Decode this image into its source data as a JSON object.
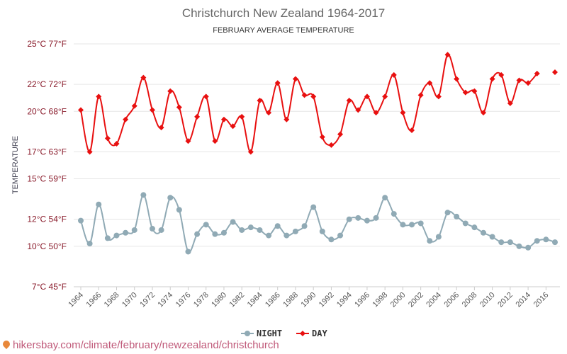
{
  "chart_data": {
    "type": "line",
    "title": "Christchurch New Zealand 1964-2017",
    "subtitle": "FEBRUARY AVERAGE TEMPERATURE",
    "ylabel": "TEMPERATURE",
    "ylim": [
      7,
      25
    ],
    "yticks": [
      {
        "value": 7,
        "label": "7°C 45°F"
      },
      {
        "value": 10,
        "label": "10°C 50°F"
      },
      {
        "value": 12,
        "label": "12°C 54°F"
      },
      {
        "value": 15,
        "label": "15°C 59°F"
      },
      {
        "value": 17,
        "label": "17°C 63°F"
      },
      {
        "value": 20,
        "label": "20°C 68°F"
      },
      {
        "value": 22,
        "label": "22°C 72°F"
      },
      {
        "value": 25,
        "label": "25°C 77°F"
      }
    ],
    "xticks": [
      "1964",
      "1966",
      "1968",
      "1970",
      "1972",
      "1974",
      "1976",
      "1978",
      "1980",
      "1982",
      "1984",
      "1986",
      "1988",
      "1990",
      "1992",
      "1994",
      "1996",
      "1998",
      "2000",
      "2002",
      "2004",
      "2006",
      "2008",
      "2010",
      "2012",
      "2014",
      "2016"
    ],
    "x": [
      1964,
      1965,
      1966,
      1967,
      1968,
      1969,
      1970,
      1971,
      1972,
      1973,
      1974,
      1975,
      1976,
      1977,
      1978,
      1979,
      1980,
      1981,
      1982,
      1983,
      1984,
      1985,
      1986,
      1987,
      1988,
      1989,
      1990,
      1991,
      1992,
      1993,
      1994,
      1995,
      1996,
      1997,
      1998,
      1999,
      2000,
      2001,
      2002,
      2003,
      2004,
      2005,
      2006,
      2007,
      2008,
      2009,
      2010,
      2011,
      2012,
      2013,
      2014,
      2015,
      2016,
      2017
    ],
    "series": [
      {
        "name": "NIGHT",
        "color": "#90aab5",
        "values": [
          11.9,
          10.2,
          13.1,
          10.6,
          10.8,
          11.0,
          11.2,
          13.8,
          11.3,
          11.2,
          13.6,
          12.7,
          9.6,
          10.9,
          11.6,
          10.9,
          11.0,
          11.8,
          11.2,
          11.4,
          11.2,
          10.8,
          11.5,
          10.8,
          11.1,
          11.5,
          12.9,
          11.1,
          10.5,
          10.8,
          12.0,
          12.1,
          11.9,
          12.1,
          13.6,
          12.4,
          11.6,
          11.6,
          11.7,
          10.4,
          10.7,
          12.5,
          12.2,
          11.7,
          11.4,
          11.0,
          10.7,
          10.3,
          10.3,
          10.0,
          9.9,
          10.4,
          10.5,
          10.3
        ]
      },
      {
        "name": "DAY",
        "color": "#e81010",
        "values": [
          20.1,
          17.0,
          21.1,
          18.0,
          17.6,
          19.4,
          20.4,
          22.5,
          20.1,
          18.8,
          21.5,
          20.3,
          17.8,
          19.6,
          21.1,
          17.8,
          19.4,
          18.9,
          19.6,
          17.0,
          20.8,
          19.9,
          22.1,
          19.4,
          22.4,
          21.2,
          21.1,
          18.1,
          17.5,
          18.3,
          20.8,
          20.1,
          21.1,
          19.9,
          21.1,
          22.7,
          19.9,
          18.6,
          21.2,
          22.1,
          21.1,
          24.2,
          22.4,
          21.4,
          21.5,
          19.9,
          22.4,
          22.7,
          20.6,
          22.3,
          22.1,
          22.8,
          null,
          22.9
        ]
      }
    ],
    "legend": {
      "position": "bottom",
      "items": [
        "NIGHT",
        "DAY"
      ]
    },
    "grid": true
  },
  "source": "hikersbay.com/climate/february/newzealand/christchurch"
}
